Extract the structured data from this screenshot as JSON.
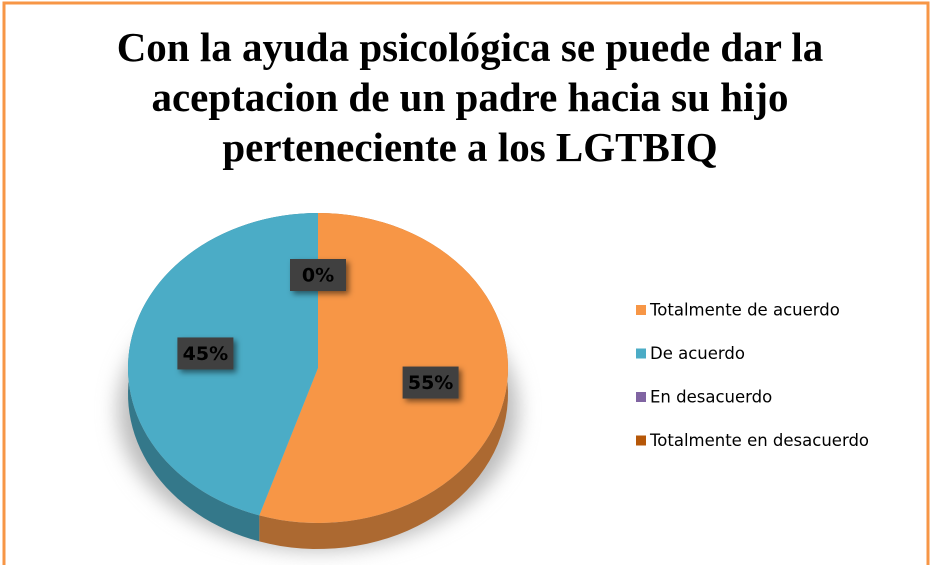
{
  "chart_data": {
    "type": "pie",
    "title": "Con la ayuda psicológica se puede dar la aceptacion de un padre hacia su hijo perteneciente a los LGTBIQ",
    "categories": [
      "Totalmente de acuerdo",
      "De acuerdo",
      "En desacuerdo",
      "Totalmente en desacuerdo"
    ],
    "values": [
      55,
      45,
      0,
      0
    ],
    "value_labels": [
      "55%",
      "45%",
      "0%",
      null
    ],
    "colors": [
      "#f79646",
      "#4bacc6",
      "#8064a2",
      "#b65708"
    ],
    "legend": "right"
  }
}
